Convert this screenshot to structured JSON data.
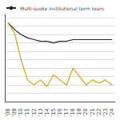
{
  "chart_data": {
    "type": "line",
    "categories": [
      "'08",
      "'09",
      "'10",
      "'11",
      "'12",
      "'13",
      "'14",
      "'15",
      "'16",
      "'17",
      "'18",
      "'19",
      "'20",
      "'21",
      "'22",
      "'23",
      "'24"
    ],
    "series": [
      {
        "name": "Multi-quote institutional term loans",
        "color": "#1b2a40",
        "values": [
          97,
          93,
          90,
          88,
          87,
          86,
          86,
          85,
          86,
          86,
          87,
          87,
          87,
          87,
          87,
          87,
          87
        ]
      },
      {
        "color": "#d4a800",
        "values": [
          97,
          91,
          75,
          63,
          60,
          63,
          59,
          66,
          63,
          60,
          70,
          65,
          60,
          63,
          61,
          63,
          60
        ]
      }
    ],
    "ylim": [
      50,
      102
    ],
    "yticks": [
      55,
      60,
      65,
      70,
      75,
      80,
      85,
      90,
      95,
      100
    ],
    "grid": true,
    "legend": "upper left",
    "tick_labels": "x"
  }
}
